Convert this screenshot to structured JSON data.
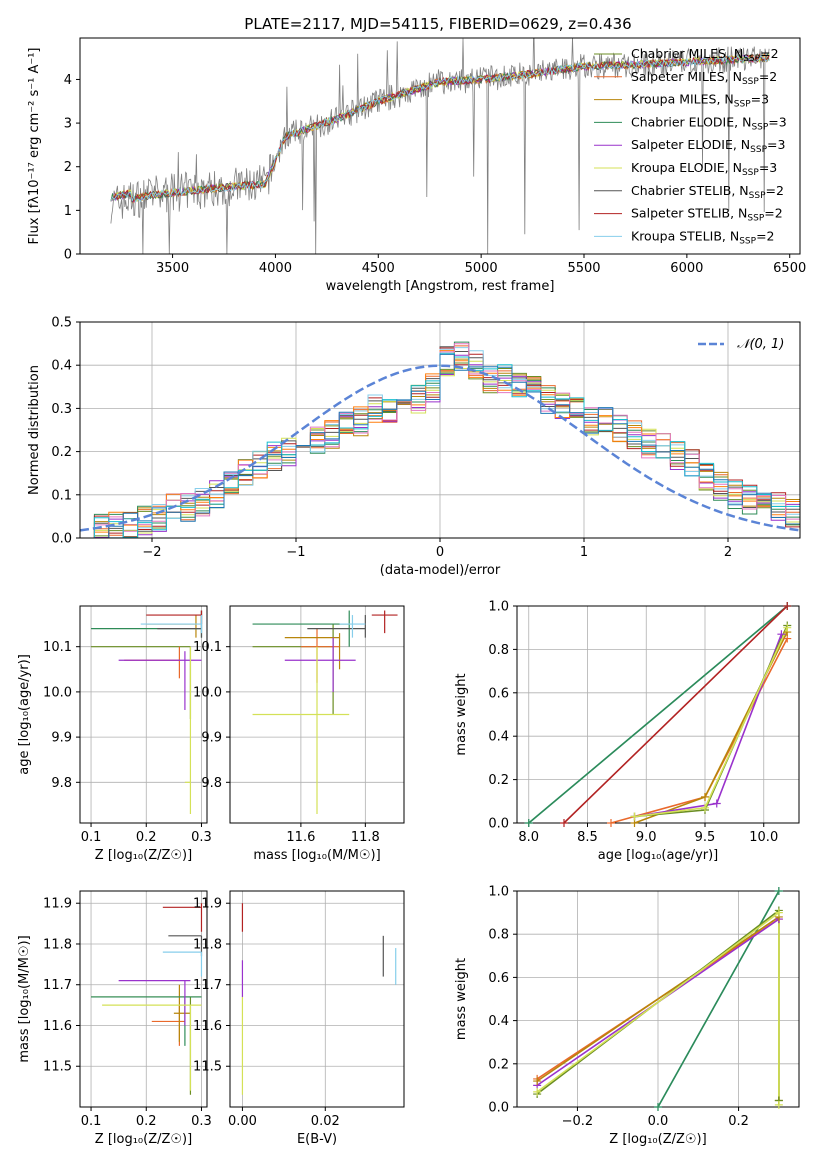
{
  "title": "PLATE=2117, MJD=54115, FIBERID=0629, z=0.436",
  "colors": {
    "chabrier_miles": "#6b8e23",
    "salpeter_miles": "#e9692c",
    "kroupa_miles": "#b8860b",
    "chabrier_elodie": "#2e8b57",
    "salpeter_elodie": "#9932cc",
    "kroupa_elodie": "#d4e157",
    "chabrier_stelib": "#555555",
    "salpeter_stelib": "#b22222",
    "kroupa_stelib": "#87ceeb",
    "normal": "#5b84d6",
    "grid": "#b0b0b0"
  },
  "chart_data": [
    {
      "type": "line",
      "xlabel": "wavelength [Angstrom, rest frame]",
      "ylabel": "Flux [fλ10⁻¹⁷ erg cm⁻² s⁻¹ A⁻¹]",
      "xlim": [
        3050,
        6550
      ],
      "ylim": [
        0,
        4.95
      ],
      "xticks": [
        3500,
        4000,
        4500,
        5000,
        5500,
        6000,
        6500
      ],
      "yticks": [
        0,
        1,
        2,
        3,
        4
      ],
      "legend_loc": "upper right",
      "series": [
        {
          "name": "Chabrier MILES, N_SSP=2"
        },
        {
          "name": "Salpeter MILES, N_SSP=2"
        },
        {
          "name": "Kroupa MILES, N_SSP=3"
        },
        {
          "name": "Chabrier ELODIE, N_SSP=3"
        },
        {
          "name": "Salpeter ELODIE, N_SSP=3"
        },
        {
          "name": "Kroupa ELODIE, N_SSP=3"
        },
        {
          "name": "Chabrier STELIB, N_SSP=2"
        },
        {
          "name": "Salpeter STELIB, N_SSP=2"
        },
        {
          "name": "Kroupa STELIB, N_SSP=2"
        }
      ],
      "model_continuum": [
        [
          3200,
          1.15
        ],
        [
          3400,
          1.35
        ],
        [
          3600,
          1.45
        ],
        [
          3800,
          1.55
        ],
        [
          3950,
          1.6
        ],
        [
          4050,
          2.7
        ],
        [
          4300,
          3.1
        ],
        [
          4500,
          3.5
        ],
        [
          4800,
          3.95
        ],
        [
          5000,
          4.0
        ],
        [
          5200,
          4.1
        ],
        [
          5500,
          4.3
        ],
        [
          5800,
          4.35
        ],
        [
          6000,
          4.4
        ],
        [
          6200,
          4.45
        ],
        [
          6400,
          4.5
        ]
      ]
    },
    {
      "type": "histogram",
      "xlabel": "(data-model)/error",
      "ylabel": "Normed distribution",
      "xlim": [
        -2.5,
        2.5
      ],
      "ylim": [
        0,
        0.5
      ],
      "xticks": [
        -2,
        -1,
        0,
        1,
        2
      ],
      "yticks": [
        0.0,
        0.1,
        0.2,
        0.3,
        0.4,
        0.5
      ],
      "legend": "𝒩(0, 1)",
      "bin_width": 0.1,
      "hist_values": [
        0.02,
        0.02,
        0.03,
        0.03,
        0.04,
        0.05,
        0.07,
        0.07,
        0.08,
        0.1,
        0.12,
        0.15,
        0.17,
        0.19,
        0.2,
        0.21,
        0.23,
        0.24,
        0.26,
        0.27,
        0.3,
        0.3,
        0.31,
        0.32,
        0.35,
        0.41,
        0.42,
        0.4,
        0.37,
        0.37,
        0.35,
        0.34,
        0.32,
        0.31,
        0.29,
        0.27,
        0.27,
        0.25,
        0.24,
        0.22,
        0.21,
        0.19,
        0.17,
        0.14,
        0.12,
        0.1,
        0.09,
        0.08,
        0.07,
        0.06
      ]
    },
    {
      "type": "scatter",
      "xlabel": "Z [log₁₀(Z/Z☉)]",
      "ylabel": "age  [log₁₀(age/yr)]",
      "xlim": [
        0.08,
        0.31
      ],
      "ylim": [
        9.71,
        10.19
      ],
      "xticks": [
        0.1,
        0.2,
        0.3
      ],
      "yticks": [
        9.8,
        9.9,
        10.0,
        10.1
      ],
      "points": [
        {
          "c": "chabrier_miles",
          "x": [
            0.1,
            0.28
          ],
          "xc": 0.28,
          "y": [
            9.94,
            10.1
          ],
          "yc": 10.1
        },
        {
          "c": "salpeter_miles",
          "x": [
            0.16,
            0.26
          ],
          "xc": 0.26,
          "y": [
            10.03,
            10.1
          ],
          "yc": 10.07
        },
        {
          "c": "kroupa_miles",
          "x": [
            0.2,
            0.29
          ],
          "xc": 0.29,
          "y": [
            10.12,
            10.17
          ],
          "yc": 10.15
        },
        {
          "c": "chabrier_elodie",
          "x": [
            0.1,
            0.3
          ],
          "xc": 0.3,
          "y": [
            10.12,
            10.18
          ],
          "yc": 10.14
        },
        {
          "c": "salpeter_elodie",
          "x": [
            0.15,
            0.3
          ],
          "xc": 0.27,
          "y": [
            9.96,
            10.09
          ],
          "yc": 10.07
        },
        {
          "c": "kroupa_elodie",
          "x": [
            0.27,
            0.28
          ],
          "xc": 0.28,
          "y": [
            9.73,
            10.1
          ],
          "yc": 9.8
        },
        {
          "c": "chabrier_stelib",
          "x": [
            0.22,
            0.3
          ],
          "xc": 0.3,
          "y": [
            10.12,
            10.18
          ],
          "yc": 10.14
        },
        {
          "c": "salpeter_stelib",
          "x": [
            0.2,
            0.3
          ],
          "xc": 0.3,
          "y": [
            10.15,
            10.18
          ],
          "yc": 10.17
        },
        {
          "c": "kroupa_stelib",
          "x": [
            0.19,
            0.3
          ],
          "xc": 0.3,
          "y": [
            10.13,
            10.17
          ],
          "yc": 10.15
        }
      ]
    },
    {
      "type": "scatter",
      "xlabel": "mass [log₁₀(M/M☉)]",
      "ylabel": "",
      "xlim": [
        11.38,
        11.92
      ],
      "ylim": [
        9.71,
        10.19
      ],
      "xticks": [
        11.6,
        11.8
      ],
      "yticks": [
        9.8,
        9.9,
        10.0,
        10.1
      ],
      "points": [
        {
          "c": "chabrier_miles",
          "x": [
            11.45,
            11.7
          ],
          "xc": 11.7,
          "y": [
            9.95,
            10.15
          ],
          "yc": 10.1
        },
        {
          "c": "salpeter_miles",
          "x": [
            11.6,
            11.72
          ],
          "xc": 11.65,
          "y": [
            10.02,
            10.14
          ],
          "yc": 10.1
        },
        {
          "c": "kroupa_miles",
          "x": [
            11.55,
            11.72
          ],
          "xc": 11.72,
          "y": [
            10.05,
            10.13
          ],
          "yc": 10.12
        },
        {
          "c": "chabrier_elodie",
          "x": [
            11.45,
            11.75
          ],
          "xc": 11.75,
          "y": [
            10.1,
            10.18
          ],
          "yc": 10.15
        },
        {
          "c": "salpeter_elodie",
          "x": [
            11.55,
            11.77
          ],
          "xc": 11.7,
          "y": [
            10.0,
            10.12
          ],
          "yc": 10.07
        },
        {
          "c": "kroupa_elodie",
          "x": [
            11.45,
            11.75
          ],
          "xc": 11.65,
          "y": [
            9.73,
            10.1
          ],
          "yc": 9.95
        },
        {
          "c": "chabrier_stelib",
          "x": [
            11.62,
            11.8
          ],
          "xc": 11.8,
          "y": [
            10.12,
            10.17
          ],
          "yc": 10.14
        },
        {
          "c": "salpeter_stelib",
          "x": [
            11.82,
            11.9
          ],
          "xc": 11.86,
          "y": [
            10.13,
            10.18
          ],
          "yc": 10.17
        },
        {
          "c": "kroupa_stelib",
          "x": [
            11.72,
            11.8
          ],
          "xc": 11.76,
          "y": [
            10.12,
            10.17
          ],
          "yc": 10.15
        }
      ]
    },
    {
      "type": "line",
      "xlabel": "age  [log₁₀(age/yr)]",
      "ylabel": "mass weight",
      "xlim": [
        7.9,
        10.3
      ],
      "ylim": [
        0,
        1
      ],
      "xticks": [
        8.0,
        8.5,
        9.0,
        9.5,
        10.0
      ],
      "yticks": [
        0.0,
        0.2,
        0.4,
        0.6,
        0.8,
        1.0
      ],
      "series": [
        {
          "c": "kroupa_stelib",
          "x": [
            8.0,
            10.2
          ],
          "y": [
            0.0,
            1.0
          ]
        },
        {
          "c": "chabrier_elodie",
          "x": [
            8.0,
            10.2
          ],
          "y": [
            0.0,
            1.0
          ]
        },
        {
          "c": "salpeter_stelib",
          "x": [
            8.3,
            10.2
          ],
          "y": [
            0.0,
            1.0
          ]
        },
        {
          "c": "salpeter_miles",
          "x": [
            8.7,
            9.5,
            10.2
          ],
          "y": [
            0.0,
            0.12,
            0.85
          ]
        },
        {
          "c": "kroupa_miles",
          "x": [
            8.9,
            9.5,
            10.2
          ],
          "y": [
            0.0,
            0.12,
            0.88
          ]
        },
        {
          "c": "salpeter_elodie",
          "x": [
            8.9,
            9.6,
            10.15
          ],
          "y": [
            0.03,
            0.09,
            0.87
          ]
        },
        {
          "c": "chabrier_miles",
          "x": [
            8.9,
            9.5,
            10.2
          ],
          "y": [
            0.03,
            0.06,
            0.91
          ]
        },
        {
          "c": "kroupa_elodie",
          "x": [
            8.9,
            9.5,
            10.2
          ],
          "y": [
            0.03,
            0.07,
            0.9
          ]
        }
      ]
    },
    {
      "type": "scatter",
      "xlabel": "Z [log₁₀(Z/Z☉)]",
      "ylabel": "mass [log₁₀(M/M☉)]",
      "xlim": [
        0.08,
        0.31
      ],
      "ylim": [
        11.4,
        11.93
      ],
      "xticks": [
        0.1,
        0.2,
        0.3
      ],
      "yticks": [
        11.5,
        11.6,
        11.7,
        11.8,
        11.9
      ],
      "points": [
        {
          "c": "chabrier_miles",
          "x": [
            0.1,
            0.3
          ],
          "xc": 0.28,
          "y": [
            11.43,
            11.67
          ],
          "yc": 11.67
        },
        {
          "c": "salpeter_miles",
          "x": [
            0.21,
            0.27
          ],
          "xc": 0.26,
          "y": [
            11.55,
            11.65
          ],
          "yc": 11.61
        },
        {
          "c": "kroupa_miles",
          "x": [
            0.25,
            0.28
          ],
          "xc": 0.26,
          "y": [
            11.56,
            11.7
          ],
          "yc": 11.63
        },
        {
          "c": "chabrier_elodie",
          "x": [
            0.1,
            0.3
          ],
          "xc": 0.27,
          "y": [
            11.55,
            11.67
          ],
          "yc": 11.67
        },
        {
          "c": "salpeter_elodie",
          "x": [
            0.15,
            0.28
          ],
          "xc": 0.27,
          "y": [
            11.6,
            11.71
          ],
          "yc": 11.71
        },
        {
          "c": "kroupa_elodie",
          "x": [
            0.12,
            0.3
          ],
          "xc": 0.28,
          "y": [
            11.44,
            11.65
          ],
          "yc": 11.65
        },
        {
          "c": "chabrier_stelib",
          "x": [
            0.24,
            0.3
          ],
          "xc": 0.3,
          "y": [
            11.77,
            11.82
          ],
          "yc": 11.82
        },
        {
          "c": "salpeter_stelib",
          "x": [
            0.23,
            0.3
          ],
          "xc": 0.3,
          "y": [
            11.83,
            11.9
          ],
          "yc": 11.89
        },
        {
          "c": "kroupa_stelib",
          "x": [
            0.23,
            0.3
          ],
          "xc": 0.3,
          "y": [
            11.72,
            11.78
          ],
          "yc": 11.78
        }
      ]
    },
    {
      "type": "scatter",
      "xlabel": "E(B-V)",
      "ylabel": "",
      "xlim": [
        -0.003,
        0.039
      ],
      "ylim": [
        11.4,
        11.93
      ],
      "xticks": [
        0.0,
        0.02
      ],
      "yticks": [
        11.5,
        11.6,
        11.7,
        11.8,
        11.9
      ],
      "points": [
        {
          "c": "kroupa_elodie",
          "x": [
            0.0,
            0.0
          ],
          "xc": 0.0,
          "y": [
            11.43,
            11.67
          ],
          "yc": 11.55
        },
        {
          "c": "salpeter_stelib",
          "x": [
            0.0,
            0.0
          ],
          "xc": 0.0,
          "y": [
            11.83,
            11.9
          ],
          "yc": 11.87
        },
        {
          "c": "salpeter_elodie",
          "x": [
            0.0,
            0.0
          ],
          "xc": 0.0,
          "y": [
            11.67,
            11.76
          ],
          "yc": 11.7
        },
        {
          "c": "chabrier_stelib",
          "x": [
            0.034,
            0.034
          ],
          "xc": 0.034,
          "y": [
            11.72,
            11.82
          ],
          "yc": 11.77
        },
        {
          "c": "kroupa_stelib",
          "x": [
            0.037,
            0.037
          ],
          "xc": 0.037,
          "y": [
            11.7,
            11.79
          ],
          "yc": 11.75
        }
      ]
    },
    {
      "type": "line",
      "xlabel": "Z [log₁₀(Z/Z☉)]",
      "ylabel": "mass weight",
      "xlim": [
        -0.35,
        0.35
      ],
      "ylim": [
        0,
        1
      ],
      "xticks": [
        -0.2,
        0.0,
        0.2
      ],
      "yticks": [
        0.0,
        0.2,
        0.4,
        0.6,
        0.8,
        1.0
      ],
      "series": [
        {
          "c": "kroupa_stelib",
          "x": [
            0.0,
            0.3
          ],
          "y": [
            0.0,
            1.0
          ]
        },
        {
          "c": "chabrier_elodie",
          "x": [
            0.0,
            0.3
          ],
          "y": [
            0.0,
            1.0
          ]
        },
        {
          "c": "salpeter_miles",
          "x": [
            -0.3,
            0.3
          ],
          "y": [
            0.13,
            0.87
          ]
        },
        {
          "c": "salpeter_elodie",
          "x": [
            -0.3,
            0.3
          ],
          "y": [
            0.1,
            0.87
          ]
        },
        {
          "c": "kroupa_miles",
          "x": [
            -0.3,
            0.3,
            0.3
          ],
          "y": [
            0.12,
            0.88,
            0.03
          ]
        },
        {
          "c": "chabrier_miles",
          "x": [
            -0.3,
            0.3,
            0.3
          ],
          "y": [
            0.06,
            0.91,
            0.03
          ]
        },
        {
          "c": "kroupa_elodie",
          "x": [
            -0.3,
            0.3,
            0.3
          ],
          "y": [
            0.07,
            0.9,
            0.01
          ]
        }
      ]
    }
  ]
}
